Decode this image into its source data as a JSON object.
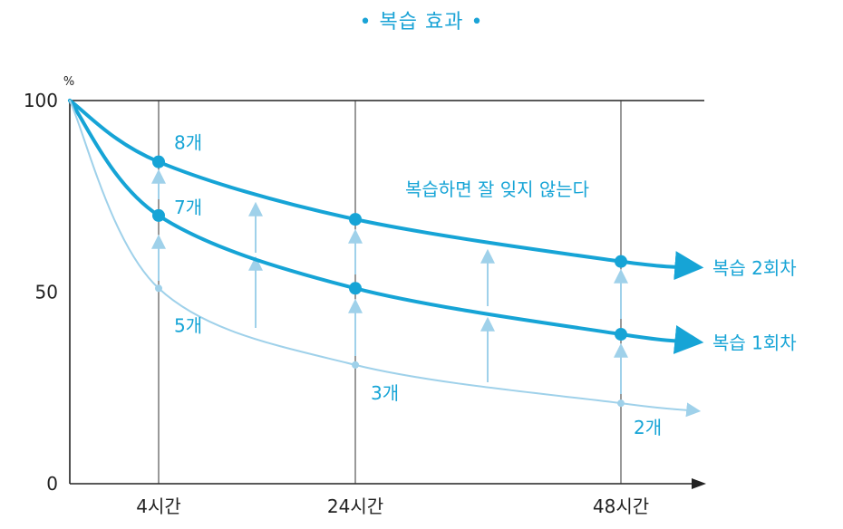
{
  "chart_data": {
    "type": "line",
    "title": "• 복습 효과 •",
    "y_unit": "%",
    "ylim": [
      0,
      100
    ],
    "y_ticks": [
      "100",
      "50",
      "0"
    ],
    "x_ticks": [
      "4시간",
      "24시간",
      "48시간"
    ],
    "annotation": "복습하면 잘 잊지 않는다",
    "series": [
      {
        "name": "복습 2회차",
        "color": "#16a4d6",
        "points": [
          [
            "0",
            100
          ],
          [
            "4시간",
            84
          ],
          [
            "24시간",
            69
          ],
          [
            "48시간",
            58
          ]
        ],
        "point_labels": [
          "",
          "8개",
          "",
          ""
        ]
      },
      {
        "name": "복습 1회차",
        "color": "#16a4d6",
        "points": [
          [
            "0",
            100
          ],
          [
            "4시간",
            70
          ],
          [
            "24시간",
            51
          ],
          [
            "48시간",
            39
          ]
        ],
        "point_labels": [
          "",
          "7개",
          "",
          ""
        ]
      },
      {
        "name": "",
        "color": "#9fd1ea",
        "points": [
          [
            "0",
            100
          ],
          [
            "4시간",
            51
          ],
          [
            "24시간",
            31
          ],
          [
            "48시간",
            21
          ]
        ],
        "point_labels": [
          "",
          "5개",
          "3개",
          "2개"
        ]
      }
    ]
  }
}
